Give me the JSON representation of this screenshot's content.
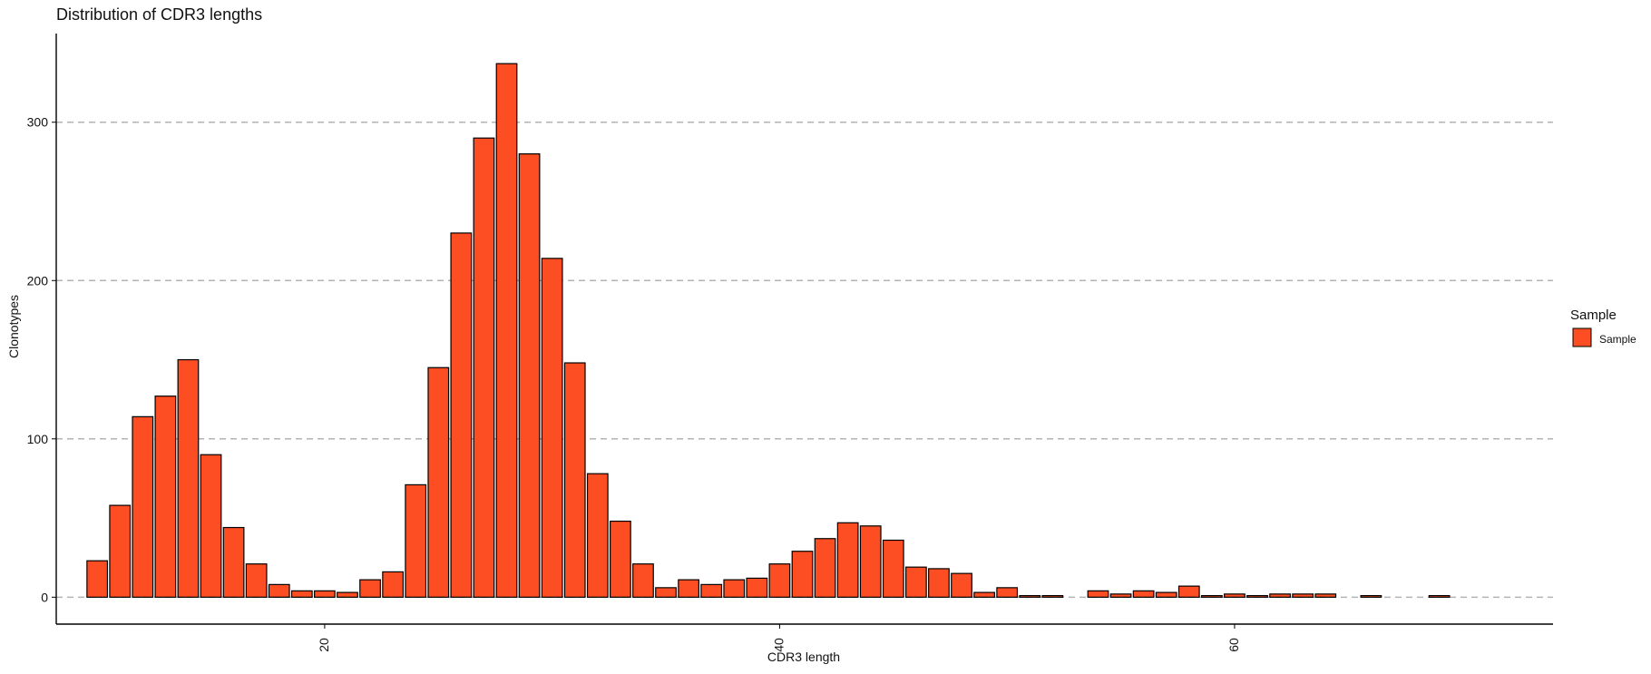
{
  "chart_data": {
    "type": "bar",
    "title": "Distribution of CDR3 lengths",
    "xlabel": "CDR3 length",
    "ylabel": "Clonotypes",
    "xlim": [
      8.2,
      74
    ],
    "ylim": [
      -17,
      356
    ],
    "x_ticks": [
      20,
      40,
      60
    ],
    "y_ticks": [
      0,
      100,
      200,
      300
    ],
    "grid": "horizontal dashed",
    "legend_position": "right",
    "legend": {
      "title": "Sample",
      "entries": [
        "Sample"
      ]
    },
    "colors": {
      "bar_fill": "#fc4e22",
      "bar_stroke": "#000000",
      "grid": "#b3b3b3",
      "axis": "#000000"
    },
    "series": [
      {
        "name": "Sample",
        "data": [
          [
            10,
            23
          ],
          [
            11,
            58
          ],
          [
            12,
            114
          ],
          [
            13,
            127
          ],
          [
            14,
            150
          ],
          [
            15,
            90
          ],
          [
            16,
            44
          ],
          [
            17,
            21
          ],
          [
            18,
            8
          ],
          [
            19,
            4
          ],
          [
            20,
            4
          ],
          [
            21,
            3
          ],
          [
            22,
            11
          ],
          [
            23,
            16
          ],
          [
            24,
            71
          ],
          [
            25,
            145
          ],
          [
            26,
            230
          ],
          [
            27,
            290
          ],
          [
            28,
            337
          ],
          [
            29,
            280
          ],
          [
            30,
            214
          ],
          [
            31,
            148
          ],
          [
            32,
            78
          ],
          [
            33,
            48
          ],
          [
            34,
            21
          ],
          [
            35,
            6
          ],
          [
            36,
            11
          ],
          [
            37,
            8
          ],
          [
            38,
            11
          ],
          [
            39,
            12
          ],
          [
            40,
            21
          ],
          [
            41,
            29
          ],
          [
            42,
            37
          ],
          [
            43,
            47
          ],
          [
            44,
            45
          ],
          [
            45,
            36
          ],
          [
            46,
            19
          ],
          [
            47,
            18
          ],
          [
            48,
            15
          ],
          [
            49,
            3
          ],
          [
            50,
            6
          ],
          [
            51,
            1
          ],
          [
            52,
            1
          ],
          [
            54,
            4
          ],
          [
            55,
            2
          ],
          [
            56,
            4
          ],
          [
            57,
            3
          ],
          [
            58,
            7
          ],
          [
            59,
            1
          ],
          [
            60,
            2
          ],
          [
            61,
            1
          ],
          [
            62,
            2
          ],
          [
            63,
            2
          ],
          [
            64,
            2
          ],
          [
            66,
            1
          ],
          [
            69,
            1
          ]
        ]
      }
    ]
  }
}
